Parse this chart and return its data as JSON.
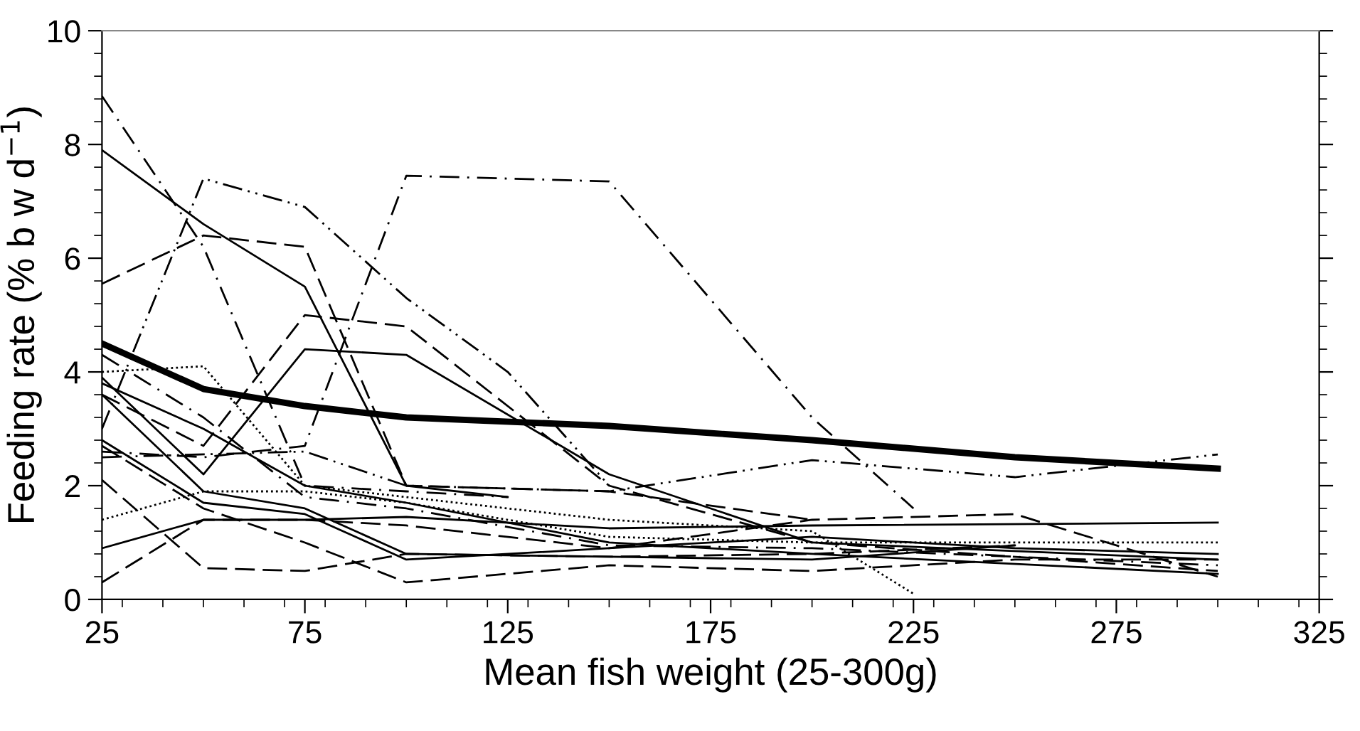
{
  "chart_data": {
    "type": "line",
    "xlabel": "Mean fish weight (25-300g)",
    "ylabel": "Feeding rate (% b w d$^{−1}$)",
    "xlim": [
      25,
      325
    ],
    "xticks": [
      25,
      75,
      125,
      175,
      225,
      275,
      325
    ],
    "ylim": [
      0,
      10
    ],
    "yticks": [
      0,
      2,
      4,
      6,
      8,
      10
    ],
    "grid": false,
    "legend": false,
    "marker": "none",
    "series": [
      {
        "color": "#000000",
        "line_style": "solid",
        "x": [
          25,
          50,
          75,
          100,
          150,
          200,
          250,
          300
        ],
        "values": [
          4.5,
          3.7,
          3.4,
          3.2,
          3.05,
          2.8,
          2.5,
          2.3
        ]
      },
      {
        "color": "#000000",
        "line_style": "dashdot",
        "x": [
          25,
          50,
          75,
          100,
          150,
          200,
          225
        ],
        "values": [
          2.6,
          2.5,
          2.7,
          7.45,
          7.35,
          3.2,
          1.6
        ]
      },
      {
        "color": "#000000",
        "line_style": "dashdot",
        "x": [
          25,
          50,
          75,
          100,
          125
        ],
        "values": [
          8.85,
          6.2,
          2.0,
          1.9,
          1.8
        ]
      },
      {
        "color": "#000000",
        "line_style": "solid",
        "x": [
          25,
          50,
          75,
          100,
          125
        ],
        "values": [
          7.9,
          6.6,
          5.5,
          2.0,
          1.8
        ]
      },
      {
        "color": "#000000",
        "line_style": "dashdotdot",
        "x": [
          25,
          50,
          75,
          100,
          125,
          150
        ],
        "values": [
          3.0,
          7.4,
          6.9,
          5.3,
          4.0,
          2.0
        ]
      },
      {
        "color": "#000000",
        "line_style": "dashed",
        "x": [
          25,
          50,
          75,
          100,
          150,
          200
        ],
        "values": [
          5.55,
          6.4,
          6.2,
          2.0,
          1.9,
          1.4
        ]
      },
      {
        "color": "#000000",
        "line_style": "dashed",
        "x": [
          25,
          50,
          75,
          100,
          150,
          200,
          300
        ],
        "values": [
          3.6,
          2.7,
          5.0,
          4.8,
          2.0,
          1.0,
          0.5
        ]
      },
      {
        "color": "#000000",
        "line_style": "solid",
        "x": [
          25,
          50,
          75,
          100,
          150,
          200,
          300
        ],
        "values": [
          3.9,
          2.2,
          4.4,
          4.3,
          2.2,
          1.0,
          0.7
        ]
      },
      {
        "color": "#000000",
        "line_style": "dashdotdot",
        "x": [
          25,
          75,
          100,
          150,
          200,
          250,
          300
        ],
        "values": [
          2.5,
          2.6,
          2.0,
          1.9,
          2.45,
          2.15,
          2.55
        ]
      },
      {
        "color": "#000000",
        "line_style": "dotted",
        "x": [
          25,
          50,
          75,
          100,
          150,
          200,
          300
        ],
        "values": [
          1.4,
          1.9,
          1.9,
          1.7,
          1.1,
          1.0,
          1.0
        ]
      },
      {
        "color": "#000000",
        "line_style": "solid",
        "x": [
          25,
          50,
          75,
          100,
          150,
          200,
          300
        ],
        "values": [
          0.9,
          1.4,
          1.4,
          1.45,
          1.25,
          1.3,
          1.35
        ]
      },
      {
        "color": "#000000",
        "line_style": "dashed",
        "x": [
          25,
          50,
          75,
          100,
          150,
          200,
          250,
          300
        ],
        "values": [
          0.3,
          1.4,
          1.4,
          1.3,
          0.9,
          1.4,
          1.5,
          0.4
        ]
      },
      {
        "color": "#000000",
        "line_style": "dashed",
        "x": [
          25,
          50,
          75,
          100,
          150,
          200,
          250
        ],
        "values": [
          2.1,
          0.55,
          0.5,
          0.8,
          0.75,
          0.8,
          0.95
        ]
      },
      {
        "color": "#000000",
        "line_style": "solid",
        "x": [
          25,
          50,
          75,
          100,
          150,
          200,
          250
        ],
        "values": [
          3.6,
          1.9,
          1.6,
          0.8,
          0.75,
          0.7,
          0.95
        ]
      },
      {
        "color": "#000000",
        "line_style": "dotted",
        "x": [
          25,
          50,
          75,
          100,
          150,
          200,
          225
        ],
        "values": [
          4.0,
          4.1,
          2.0,
          1.8,
          1.4,
          1.2,
          0.1
        ]
      },
      {
        "color": "#000000",
        "line_style": "dashed",
        "x": [
          25,
          50,
          75,
          100,
          150,
          200,
          250,
          300
        ],
        "values": [
          2.7,
          1.6,
          1.0,
          0.3,
          0.6,
          0.5,
          0.7,
          0.7
        ]
      },
      {
        "color": "#000000",
        "line_style": "solid",
        "x": [
          25,
          50,
          75,
          100,
          150,
          200,
          250,
          300
        ],
        "values": [
          2.8,
          1.7,
          1.5,
          0.7,
          0.9,
          1.1,
          0.9,
          0.8
        ]
      },
      {
        "color": "#000000",
        "line_style": "dashdot",
        "x": [
          25,
          50,
          75,
          100,
          150,
          200,
          300
        ],
        "values": [
          4.3,
          3.2,
          1.8,
          1.6,
          0.95,
          0.9,
          0.6
        ]
      },
      {
        "color": "#000000",
        "line_style": "solid",
        "x": [
          25,
          50,
          75,
          100,
          150,
          200,
          300
        ],
        "values": [
          3.8,
          3.0,
          2.0,
          1.7,
          1.0,
          0.8,
          0.45
        ]
      }
    ]
  }
}
